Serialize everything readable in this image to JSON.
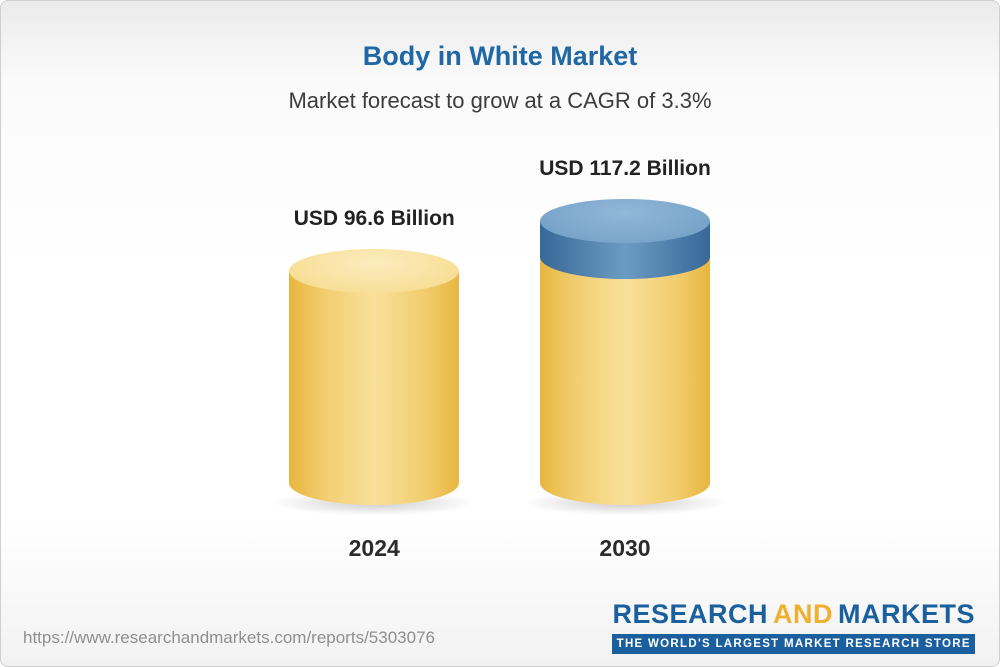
{
  "page": {
    "border_color": "#cfcfcf",
    "background": "#ffffff"
  },
  "header": {
    "title": "Body in White Market",
    "subtitle": "Market forecast to grow at a CAGR of 3.3%",
    "title_color": "#2067a6"
  },
  "chart_data": {
    "type": "bar",
    "variant": "3d-cylinder",
    "title": "Body in White Market",
    "subtitle": "Market forecast to grow at a CAGR of 3.3%",
    "unit": "USD Billion",
    "cagr_percent": 3.3,
    "categories": [
      "2024",
      "2030"
    ],
    "values": [
      96.6,
      117.2
    ],
    "bars": [
      {
        "year": "2024",
        "value": 96.6,
        "label": "USD 96.6 Billion",
        "color": "#f2c75c"
      },
      {
        "year": "2030",
        "value": 117.2,
        "label": "USD 117.2 Billion",
        "color": "#f2c75c",
        "growth_segment": {
          "value": 20.6,
          "color": "#5e8fba",
          "note": "growth over 2024 shown as blue top segment"
        }
      }
    ],
    "xlabel": "",
    "ylabel": "",
    "legend": false,
    "grid": false,
    "axes_visible": false
  },
  "footer": {
    "url": "https://www.researchandmarkets.com/reports/5303076",
    "logo": {
      "research": "RESEARCH",
      "and": "AND",
      "markets": "MARKETS",
      "tagline": "THE WORLD'S LARGEST MARKET RESEARCH STORE",
      "blue": "#1a5f9e",
      "gold": "#f0b02f"
    }
  }
}
